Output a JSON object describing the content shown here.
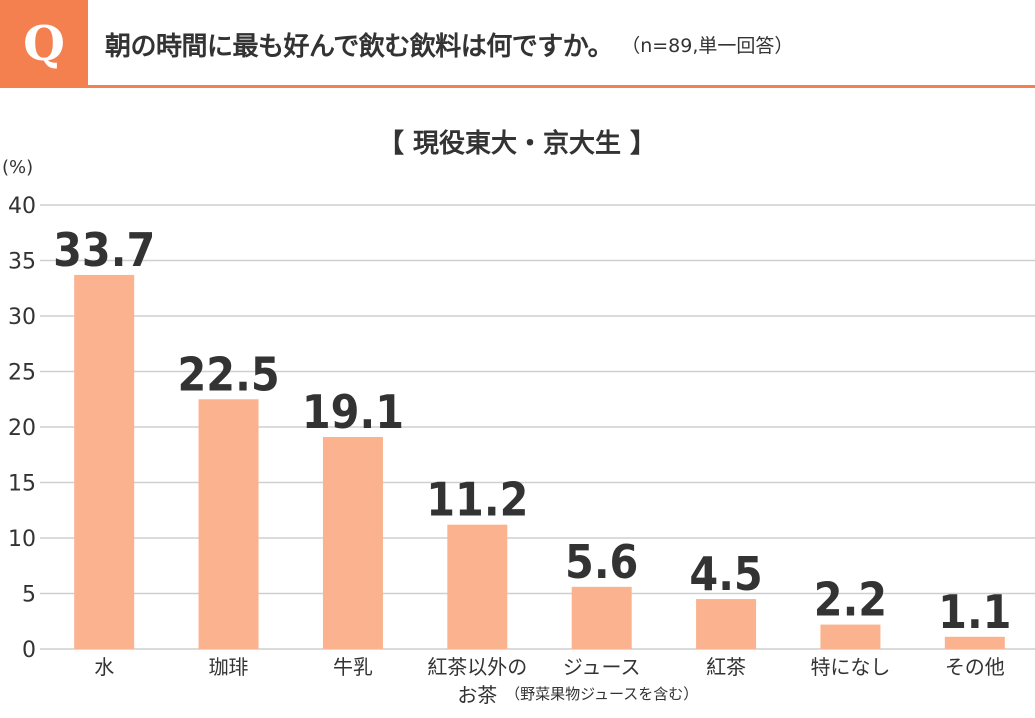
{
  "question": {
    "badge": "Q",
    "text": "朝の時間に最も好んで飲む飲料は何ですか。",
    "note": "（n=89,単一回答）"
  },
  "colors": {
    "accent": "#f47f4f",
    "bar": "#fbb38f"
  },
  "chart_data": {
    "type": "bar",
    "title": "【 現役東大・京大生 】",
    "ylabel": "(%)",
    "xlabel": "",
    "ylim": [
      0,
      40
    ],
    "yticks": [
      0,
      5,
      10,
      15,
      20,
      25,
      30,
      35,
      40
    ],
    "grid": true,
    "categories": [
      {
        "label": "水",
        "sub": ""
      },
      {
        "label": "珈琲",
        "sub": ""
      },
      {
        "label": "牛乳",
        "sub": ""
      },
      {
        "label": "紅茶以外の",
        "label2": "お茶",
        "sub": ""
      },
      {
        "label": "ジュース",
        "sub": "（野菜果物ジュースを含む）"
      },
      {
        "label": "紅茶",
        "sub": ""
      },
      {
        "label": "特になし",
        "sub": ""
      },
      {
        "label": "その他",
        "sub": ""
      }
    ],
    "values": [
      33.7,
      22.5,
      19.1,
      11.2,
      5.6,
      4.5,
      2.2,
      1.1
    ]
  }
}
